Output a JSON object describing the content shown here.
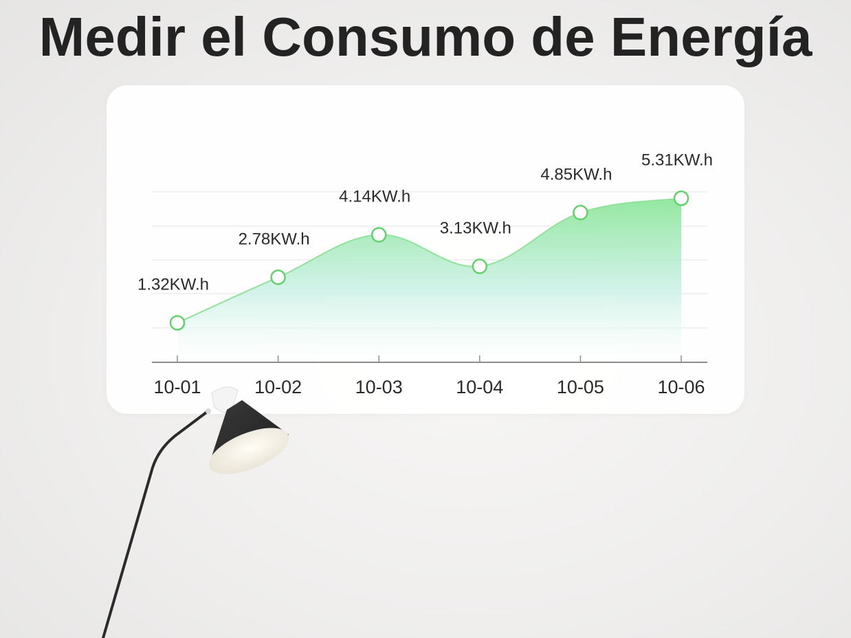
{
  "title": "Medir el Consumo de Energía",
  "chart_data": {
    "type": "area",
    "categories": [
      "10-01",
      "10-02",
      "10-03",
      "10-04",
      "10-05",
      "10-06"
    ],
    "values": [
      1.32,
      2.78,
      4.14,
      3.13,
      4.85,
      5.31
    ],
    "data_labels": [
      "1.32KW.h",
      "2.78KW.h",
      "4.14KW.h",
      "3.13KW.h",
      "4.85KW.h",
      "5.31KW.h"
    ],
    "unit": "KW.h",
    "title": "",
    "xlabel": "",
    "ylabel": "",
    "grid": true,
    "legend": "none",
    "colors": {
      "line": "#8fe39a",
      "fill_top": "#8ee69b",
      "fill_mid": "#c8f0e4",
      "marker_stroke": "#5fd36a",
      "marker_fill": "#ffffff",
      "gridline": "#e2e2e2",
      "axis": "#8c8c8c",
      "label_text": "#2a2a2a"
    }
  },
  "decorations": {
    "lamp": "floor-lamp-image"
  }
}
